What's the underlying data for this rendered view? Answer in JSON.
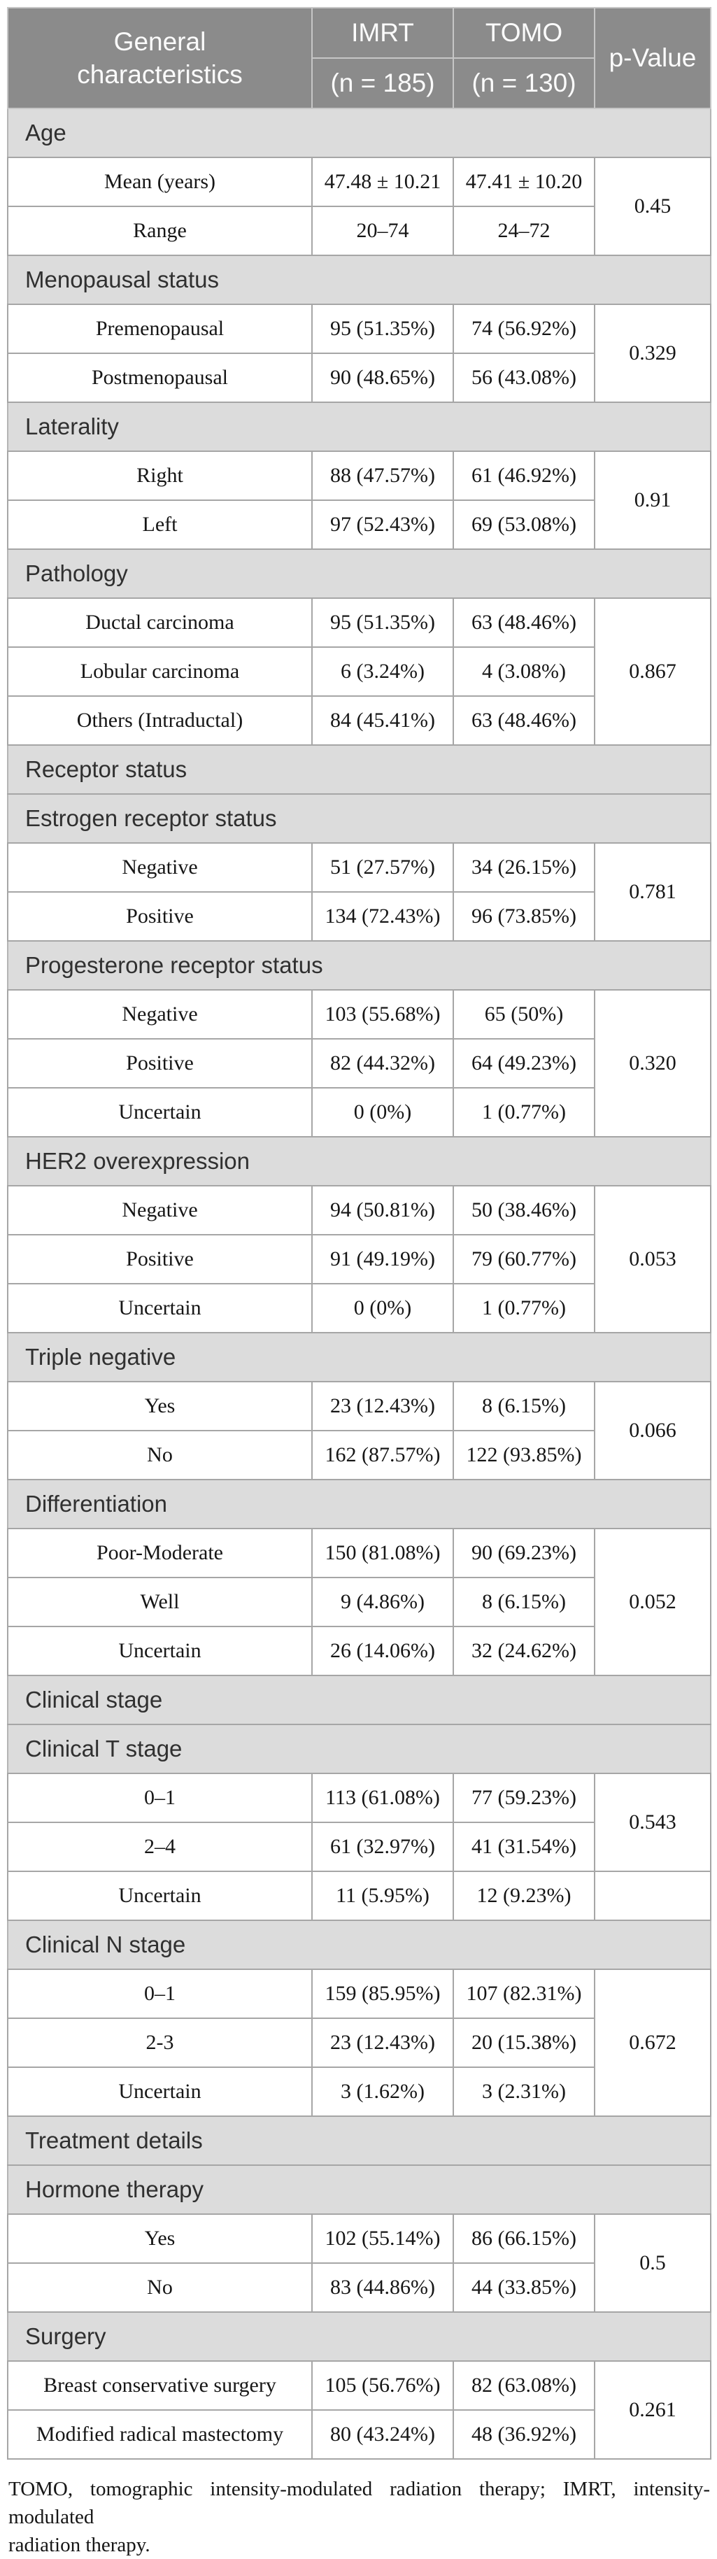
{
  "header": {
    "characteristics": "General characteristics",
    "imrt": "IMRT",
    "imrt_n": "(n = 185)",
    "tomo": "TOMO",
    "tomo_n": "(n = 130)",
    "p_value": "p-Value"
  },
  "sections": [
    {
      "title": "Age",
      "p": "0.45",
      "rows": [
        {
          "label": "Mean (years)",
          "imrt": "47.48 ± 10.21",
          "tomo": "47.41 ± 10.20"
        },
        {
          "label": "Range",
          "imrt": "20–74",
          "tomo": "24–72"
        }
      ]
    },
    {
      "title": "Menopausal status",
      "p": "0.329",
      "rows": [
        {
          "label": "Premenopausal",
          "imrt": "95 (51.35%)",
          "tomo": "74 (56.92%)"
        },
        {
          "label": "Postmenopausal",
          "imrt": "90 (48.65%)",
          "tomo": "56 (43.08%)"
        }
      ]
    },
    {
      "title": "Laterality",
      "p": "0.91",
      "rows": [
        {
          "label": "Right",
          "imrt": "88 (47.57%)",
          "tomo": "61 (46.92%)"
        },
        {
          "label": "Left",
          "imrt": "97 (52.43%)",
          "tomo": "69 (53.08%)"
        }
      ]
    },
    {
      "title": "Pathology",
      "p": "0.867",
      "rows": [
        {
          "label": "Ductal carcinoma",
          "imrt": "95 (51.35%)",
          "tomo": "63 (48.46%)"
        },
        {
          "label": "Lobular carcinoma",
          "imrt": "6 (3.24%)",
          "tomo": "4 (3.08%)"
        },
        {
          "label": "Others (Intraductal)",
          "imrt": "84 (45.41%)",
          "tomo": "63 (48.46%)"
        }
      ]
    },
    {
      "title": "Receptor status",
      "rows": []
    },
    {
      "title": "Estrogen receptor status",
      "p": "0.781",
      "rows": [
        {
          "label": "Negative",
          "imrt": "51 (27.57%)",
          "tomo": "34 (26.15%)"
        },
        {
          "label": "Positive",
          "imrt": "134 (72.43%)",
          "tomo": "96 (73.85%)"
        }
      ]
    },
    {
      "title": "Progesterone receptor status",
      "p": "0.320",
      "rows": [
        {
          "label": "Negative",
          "imrt": "103 (55.68%)",
          "tomo": "65 (50%)"
        },
        {
          "label": "Positive",
          "imrt": "82 (44.32%)",
          "tomo": "64 (49.23%)"
        },
        {
          "label": "Uncertain",
          "imrt": "0 (0%)",
          "tomo": "1 (0.77%)"
        }
      ]
    },
    {
      "title": "HER2 overexpression",
      "p": "0.053",
      "rows": [
        {
          "label": "Negative",
          "imrt": "94 (50.81%)",
          "tomo": "50 (38.46%)"
        },
        {
          "label": "Positive",
          "imrt": "91 (49.19%)",
          "tomo": "79 (60.77%)"
        },
        {
          "label": "Uncertain",
          "imrt": "0 (0%)",
          "tomo": "1 (0.77%)"
        }
      ]
    },
    {
      "title": "Triple negative",
      "p": "0.066",
      "rows": [
        {
          "label": "Yes",
          "imrt": "23 (12.43%)",
          "tomo": "8 (6.15%)"
        },
        {
          "label": "No",
          "imrt": "162 (87.57%)",
          "tomo": "122 (93.85%)"
        }
      ]
    },
    {
      "title": "Differentiation",
      "p": "0.052",
      "rows": [
        {
          "label": "Poor-Moderate",
          "imrt": "150 (81.08%)",
          "tomo": "90 (69.23%)"
        },
        {
          "label": "Well",
          "imrt": "9 (4.86%)",
          "tomo": "8 (6.15%)"
        },
        {
          "label": "Uncertain",
          "imrt": "26 (14.06%)",
          "tomo": "32 (24.62%)"
        }
      ]
    },
    {
      "title": "Clinical stage",
      "rows": []
    },
    {
      "title": "Clinical T stage",
      "p": "0.543",
      "rows": [
        {
          "label": "0–1",
          "imrt": "113 (61.08%)",
          "tomo": "77 (59.23%)"
        },
        {
          "label": "2–4",
          "imrt": "61 (32.97%)",
          "tomo": "41 (31.54%)"
        },
        {
          "label": "Uncertain",
          "imrt": "11 (5.95%)",
          "tomo": "12 (9.23%)",
          "p": ""
        }
      ]
    },
    {
      "title": "Clinical N stage",
      "p": "0.672",
      "rows": [
        {
          "label": "0–1",
          "imrt": "159 (85.95%)",
          "tomo": "107 (82.31%)"
        },
        {
          "label": "2-3",
          "imrt": "23 (12.43%)",
          "tomo": "20 (15.38%)"
        },
        {
          "label": "Uncertain",
          "imrt": "3 (1.62%)",
          "tomo": "3 (2.31%)"
        }
      ]
    },
    {
      "title": "Treatment details",
      "rows": []
    },
    {
      "title": "Hormone therapy",
      "p": "0.5",
      "rows": [
        {
          "label": "Yes",
          "imrt": "102 (55.14%)",
          "tomo": "86 (66.15%)"
        },
        {
          "label": "No",
          "imrt": "83 (44.86%)",
          "tomo": "44 (33.85%)"
        }
      ]
    },
    {
      "title": "Surgery",
      "p": "0.261",
      "rows": [
        {
          "label": "Breast conservative surgery",
          "imrt": "105 (56.76%)",
          "tomo": "82 (63.08%)"
        },
        {
          "label": "Modified radical mastectomy",
          "imrt": "80 (43.24%)",
          "tomo": "48 (36.92%)"
        }
      ]
    }
  ],
  "footnote": {
    "line1": "TOMO, tomographic intensity-modulated radiation therapy; IMRT, intensity-modulated",
    "line2": "radiation therapy."
  },
  "colors": {
    "header_bg": "#8b8b8b",
    "header_text": "#fbfbfb",
    "section_band_bg": "#dcdcdc",
    "body_border": "#a6a6a6",
    "text": "#161616"
  }
}
